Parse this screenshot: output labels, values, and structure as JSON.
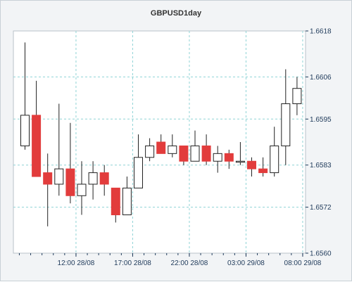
{
  "chart_data": {
    "type": "candlestick",
    "title": "GBPUSD1day",
    "xlabel": "",
    "ylabel": "",
    "ylim": [
      1.656,
      1.6618
    ],
    "y_ticks": [
      "1.6560",
      "1.6572",
      "1.6583",
      "1.6595",
      "1.6606",
      "1.6618"
    ],
    "x_ticks": [
      {
        "index": 4.5,
        "label": "12:00 28/08"
      },
      {
        "index": 9.5,
        "label": "17:00 28/08"
      },
      {
        "index": 14.5,
        "label": "22:00 28/08"
      },
      {
        "index": 19.5,
        "label": "03:00 29/08"
      },
      {
        "index": 24.5,
        "label": "08:00 29/08"
      }
    ],
    "colors": {
      "up": "#ffffff",
      "down": "#e23c3c",
      "grid": "#8fd3d6",
      "wick": "#222222"
    },
    "grid": true,
    "candles": [
      {
        "open": 1.6588,
        "high": 1.6615,
        "low": 1.6587,
        "close": 1.6596
      },
      {
        "open": 1.6596,
        "high": 1.6605,
        "low": 1.658,
        "close": 1.658
      },
      {
        "open": 1.6581,
        "high": 1.6586,
        "low": 1.6567,
        "close": 1.6578
      },
      {
        "open": 1.6578,
        "high": 1.6599,
        "low": 1.6575,
        "close": 1.6582
      },
      {
        "open": 1.6582,
        "high": 1.6594,
        "low": 1.6573,
        "close": 1.6575
      },
      {
        "open": 1.6575,
        "high": 1.6584,
        "low": 1.657,
        "close": 1.6578
      },
      {
        "open": 1.6578,
        "high": 1.6584,
        "low": 1.6574,
        "close": 1.6581
      },
      {
        "open": 1.6581,
        "high": 1.6583,
        "low": 1.6575,
        "close": 1.6578
      },
      {
        "open": 1.6577,
        "high": 1.6577,
        "low": 1.6568,
        "close": 1.657
      },
      {
        "open": 1.657,
        "high": 1.658,
        "low": 1.657,
        "close": 1.6577
      },
      {
        "open": 1.6577,
        "high": 1.6591,
        "low": 1.6577,
        "close": 1.6585
      },
      {
        "open": 1.6585,
        "high": 1.659,
        "low": 1.6584,
        "close": 1.6588
      },
      {
        "open": 1.6589,
        "high": 1.6591,
        "low": 1.6586,
        "close": 1.6586
      },
      {
        "open": 1.6586,
        "high": 1.6591,
        "low": 1.6585,
        "close": 1.6588
      },
      {
        "open": 1.6588,
        "high": 1.6588,
        "low": 1.6583,
        "close": 1.6584
      },
      {
        "open": 1.6584,
        "high": 1.6592,
        "low": 1.6584,
        "close": 1.6588
      },
      {
        "open": 1.6588,
        "high": 1.6591,
        "low": 1.6583,
        "close": 1.6584
      },
      {
        "open": 1.6584,
        "high": 1.6588,
        "low": 1.6581,
        "close": 1.6586
      },
      {
        "open": 1.6586,
        "high": 1.6587,
        "low": 1.6582,
        "close": 1.6584
      },
      {
        "open": 1.6584,
        "high": 1.6589,
        "low": 1.6583,
        "close": 1.6584
      },
      {
        "open": 1.6584,
        "high": 1.6585,
        "low": 1.658,
        "close": 1.6582
      },
      {
        "open": 1.6582,
        "high": 1.6585,
        "low": 1.658,
        "close": 1.6581
      },
      {
        "open": 1.6581,
        "high": 1.6593,
        "low": 1.658,
        "close": 1.6588
      },
      {
        "open": 1.6588,
        "high": 1.6608,
        "low": 1.6583,
        "close": 1.6599
      },
      {
        "open": 1.6599,
        "high": 1.6606,
        "low": 1.6596,
        "close": 1.6603
      }
    ]
  }
}
